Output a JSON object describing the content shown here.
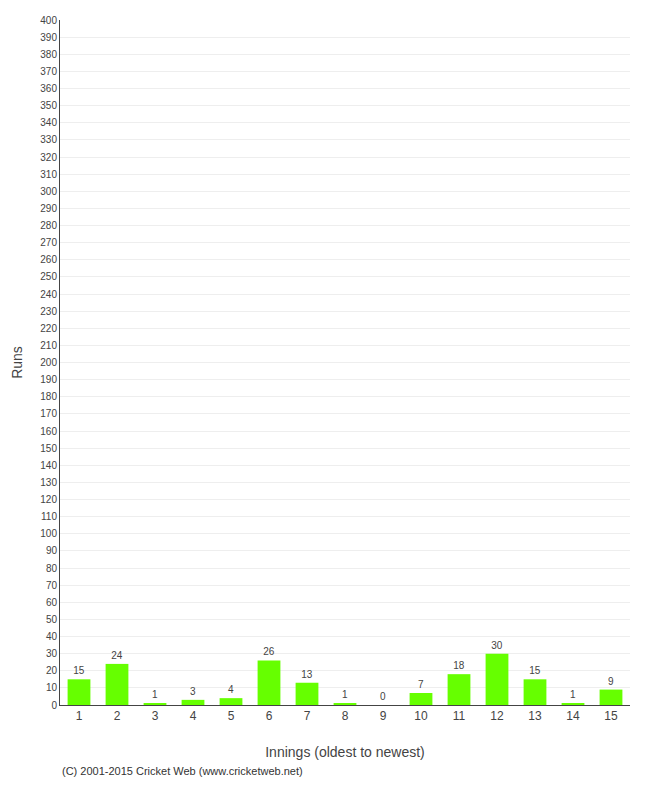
{
  "chart_data": {
    "type": "bar",
    "xlabel": "Innings (oldest to newest)",
    "ylabel": "Runs",
    "categories": [
      "1",
      "2",
      "3",
      "4",
      "5",
      "6",
      "7",
      "8",
      "9",
      "10",
      "11",
      "12",
      "13",
      "14",
      "15"
    ],
    "values": [
      15,
      24,
      1,
      3,
      4,
      26,
      13,
      1,
      0,
      7,
      18,
      30,
      15,
      1,
      9
    ],
    "color": "#66ff00",
    "ylim": [
      0,
      400
    ],
    "yticks": [
      0,
      10,
      20,
      30,
      40,
      50,
      60,
      70,
      80,
      90,
      100,
      110,
      120,
      130,
      140,
      150,
      160,
      170,
      180,
      190,
      200,
      210,
      220,
      230,
      240,
      250,
      260,
      270,
      280,
      290,
      300,
      310,
      320,
      330,
      340,
      350,
      360,
      370,
      380,
      390,
      400
    ],
    "grid": true,
    "data_labels": true,
    "annotations": [
      "(C) 2001-2015 Cricket Web (www.cricketweb.net)"
    ]
  }
}
